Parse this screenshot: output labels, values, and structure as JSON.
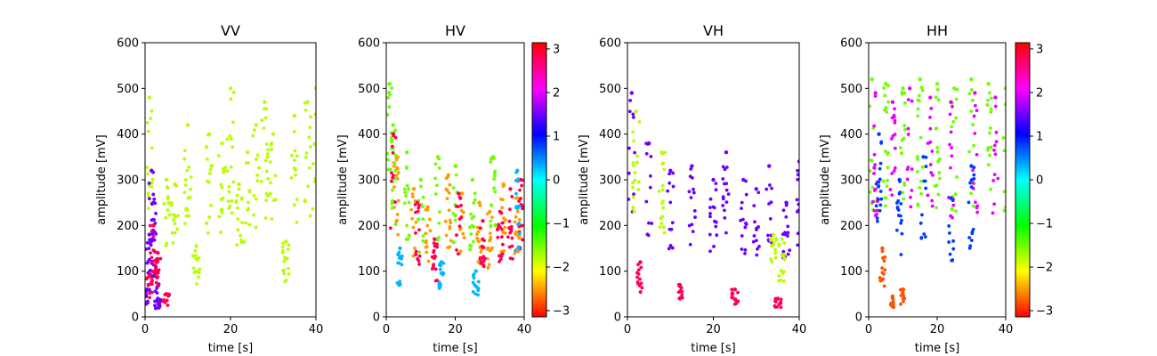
{
  "chart_data": [
    {
      "type": "scatter",
      "title": "VV",
      "xlabel": "time [s]",
      "ylabel": "amplitude [mV]",
      "xlim": [
        0,
        40
      ],
      "ylim": [
        0,
        600
      ],
      "xticks": [
        "0",
        "20",
        "40"
      ],
      "yticks": [
        "0",
        "100",
        "200",
        "300",
        "400",
        "500",
        "600"
      ],
      "colorbar": false,
      "pattern": "saturated top band near 500 mV with downward spikes; scattered noisy points for t < 7 s",
      "series": [
        {
          "name": "phase -1.8 (yellow-green)",
          "phase": -1.8,
          "x": [
            1,
            5,
            7,
            10,
            12,
            15,
            18,
            20,
            22,
            24,
            26,
            28,
            30,
            33,
            35,
            38,
            40
          ],
          "y": [
            480,
            300,
            290,
            420,
            155,
            400,
            380,
            500,
            290,
            360,
            420,
            470,
            400,
            165,
            440,
            470,
            500
          ]
        },
        {
          "name": "phase 1.5 (violet)",
          "phase": 1.5,
          "x": [
            0.5,
            1,
            1.5,
            2,
            2.5,
            3
          ],
          "y": [
            60,
            180,
            320,
            250,
            110,
            40
          ]
        },
        {
          "name": "phase 2.8 (magenta)",
          "phase": 2.8,
          "x": [
            1,
            2,
            3,
            5
          ],
          "y": [
            90,
            200,
            140,
            50
          ]
        }
      ]
    },
    {
      "type": "scatter",
      "title": "HV",
      "xlabel": "time [s]",
      "ylabel": "amplitude [mV]",
      "xlim": [
        0,
        40
      ],
      "ylim": [
        0,
        600
      ],
      "xticks": [
        "0",
        "20",
        "40"
      ],
      "yticks": [
        "0",
        "100",
        "200",
        "300",
        "400",
        "500",
        "600"
      ],
      "colorbar": true,
      "colorbar_ticks": [
        "3",
        "2",
        "1",
        "0",
        "−1",
        "−2",
        "−3"
      ],
      "pattern": "dense multicolor spikes, amplitudes mostly 0-350 mV, strongest near t = 1-3 s up to ~510 mV",
      "series": [
        {
          "name": "phase -2.5 (orange)",
          "phase": -2.5,
          "x": [
            3,
            8,
            12,
            18,
            22,
            27,
            30,
            34,
            38
          ],
          "y": [
            350,
            280,
            240,
            310,
            270,
            250,
            230,
            290,
            260
          ]
        },
        {
          "name": "phase -1.5 (green-yellow)",
          "phase": -1.5,
          "x": [
            1,
            2,
            6,
            10,
            15,
            20,
            25,
            31
          ],
          "y": [
            510,
            420,
            360,
            300,
            350,
            330,
            300,
            350
          ]
        },
        {
          "name": "phase 2.8 (red-magenta)",
          "phase": 2.8,
          "x": [
            2,
            9,
            14,
            21,
            28,
            33,
            36,
            39
          ],
          "y": [
            400,
            250,
            170,
            270,
            210,
            230,
            280,
            300
          ]
        },
        {
          "name": "phase 0.3 (cyan)",
          "phase": 0.3,
          "x": [
            4,
            16,
            26,
            38
          ],
          "y": [
            150,
            120,
            100,
            320
          ]
        }
      ]
    },
    {
      "type": "scatter",
      "title": "VH",
      "xlabel": "time [s]",
      "ylabel": "amplitude [mV]",
      "xlim": [
        0,
        40
      ],
      "ylim": [
        0,
        600
      ],
      "xticks": [
        "0",
        "20",
        "40"
      ],
      "yticks": [
        "0",
        "100",
        "200",
        "300",
        "400",
        "500",
        "600"
      ],
      "colorbar": false,
      "pattern": "dense violet band 0-350 mV, peak ~490 mV near t = 1 s; green spikes near t = 8 s and 34-36 s",
      "series": [
        {
          "name": "phase 1.5 (violet)",
          "phase": 1.5,
          "x": [
            1,
            5,
            10,
            15,
            20,
            23,
            27,
            30,
            33,
            37,
            40
          ],
          "y": [
            490,
            380,
            320,
            330,
            300,
            360,
            300,
            280,
            330,
            250,
            340
          ]
        },
        {
          "name": "phase -1.8 (yellow-green)",
          "phase": -1.8,
          "x": [
            2,
            8,
            34,
            36
          ],
          "y": [
            450,
            360,
            180,
            170
          ]
        },
        {
          "name": "phase 2.8 (magenta)",
          "phase": 2.8,
          "x": [
            3,
            12,
            25,
            35
          ],
          "y": [
            120,
            70,
            60,
            40
          ]
        }
      ]
    },
    {
      "type": "scatter",
      "title": "HH",
      "xlabel": "time [s]",
      "ylabel": "amplitude [mV]",
      "xlim": [
        0,
        40
      ],
      "ylim": [
        0,
        600
      ],
      "xticks": [
        "0",
        "20",
        "40"
      ],
      "yticks": [
        "0",
        "100",
        "200",
        "300",
        "400",
        "500",
        "600"
      ],
      "colorbar": true,
      "colorbar_ticks": [
        "3",
        "2",
        "1",
        "0",
        "−1",
        "−2",
        "−3"
      ],
      "pattern": "multicolor band 440-550 mV with sparse dotted vertical spikes down to ~40 mV",
      "series": [
        {
          "name": "phase -1.5 (yellow-green)",
          "phase": -1.5,
          "x": [
            1,
            5,
            10,
            15,
            20,
            25,
            30,
            35,
            40
          ],
          "y": [
            520,
            510,
            500,
            520,
            510,
            500,
            520,
            510,
            500
          ]
        },
        {
          "name": "phase 2.0 (magenta)",
          "phase": 2.0,
          "x": [
            2,
            7,
            12,
            18,
            24,
            31,
            37
          ],
          "y": [
            490,
            470,
            500,
            480,
            470,
            490,
            480
          ]
        },
        {
          "name": "phase 0.8 (blue)",
          "phase": 0.8,
          "x": [
            3,
            9,
            16,
            24,
            30
          ],
          "y": [
            400,
            300,
            350,
            260,
            330
          ]
        },
        {
          "name": "phase -2.8 (red)",
          "phase": -2.8,
          "x": [
            4,
            7,
            10
          ],
          "y": [
            150,
            45,
            60
          ]
        }
      ]
    }
  ]
}
